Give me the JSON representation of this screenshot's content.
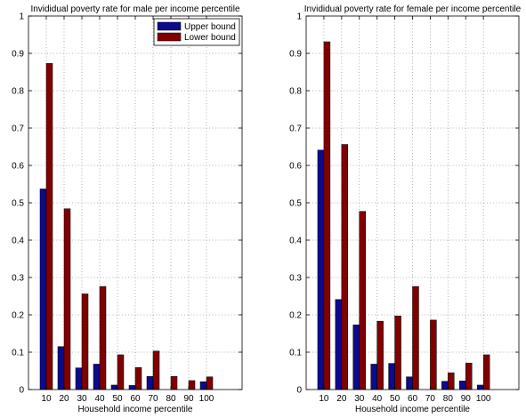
{
  "colors": {
    "upper_bound": "#0b0b8c",
    "lower_bound": "#800000"
  },
  "chart_data": [
    {
      "type": "bar",
      "title": "Invididual poverty rate for male per income percentile",
      "xlabel": "Household income percentile",
      "ylabel": "",
      "categories": [
        "10",
        "20",
        "30",
        "40",
        "50",
        "60",
        "70",
        "80",
        "90",
        "100"
      ],
      "xlim": [
        0,
        120
      ],
      "ylim": [
        0,
        1
      ],
      "yticks": [
        0,
        0.1,
        0.2,
        0.3,
        0.4,
        0.5,
        0.6,
        0.7,
        0.8,
        0.9,
        1
      ],
      "yticklabels": [
        "0",
        "0.1",
        "0.2",
        "0.3",
        "0.4",
        "0.5",
        "0.6",
        "0.7",
        "0.8",
        "0.9",
        "1"
      ],
      "grid": true,
      "legend": "top-right",
      "series": [
        {
          "name": "Upper bound",
          "color": "#0b0b8c",
          "values": [
            0.537,
            0.115,
            0.058,
            0.068,
            0.012,
            0.011,
            0.035,
            0.0,
            0.0,
            0.021
          ]
        },
        {
          "name": "Lower bound",
          "color": "#800000",
          "values": [
            0.873,
            0.484,
            0.256,
            0.276,
            0.093,
            0.059,
            0.103,
            0.035,
            0.024,
            0.034
          ]
        }
      ]
    },
    {
      "type": "bar",
      "title": "Invididual poverty rate for female per income percentile",
      "xlabel": "Household income percentile",
      "ylabel": "",
      "categories": [
        "10",
        "20",
        "30",
        "40",
        "50",
        "60",
        "70",
        "80",
        "90",
        "100"
      ],
      "xlim": [
        0,
        120
      ],
      "ylim": [
        0,
        1
      ],
      "yticks": [
        0,
        0.1,
        0.2,
        0.3,
        0.4,
        0.5,
        0.6,
        0.7,
        0.8,
        0.9,
        1
      ],
      "yticklabels": [
        "0",
        "0.1",
        "0.2",
        "0.3",
        "0.4",
        "0.5",
        "0.6",
        "0.7",
        "0.8",
        "0.9",
        "1"
      ],
      "grid": true,
      "legend": "none",
      "series": [
        {
          "name": "Upper bound",
          "color": "#0b0b8c",
          "values": [
            0.641,
            0.241,
            0.173,
            0.068,
            0.07,
            0.034,
            0.0,
            0.022,
            0.023,
            0.012
          ]
        },
        {
          "name": "Lower bound",
          "color": "#800000",
          "values": [
            0.931,
            0.656,
            0.477,
            0.183,
            0.197,
            0.276,
            0.186,
            0.045,
            0.071,
            0.093
          ]
        }
      ]
    }
  ]
}
